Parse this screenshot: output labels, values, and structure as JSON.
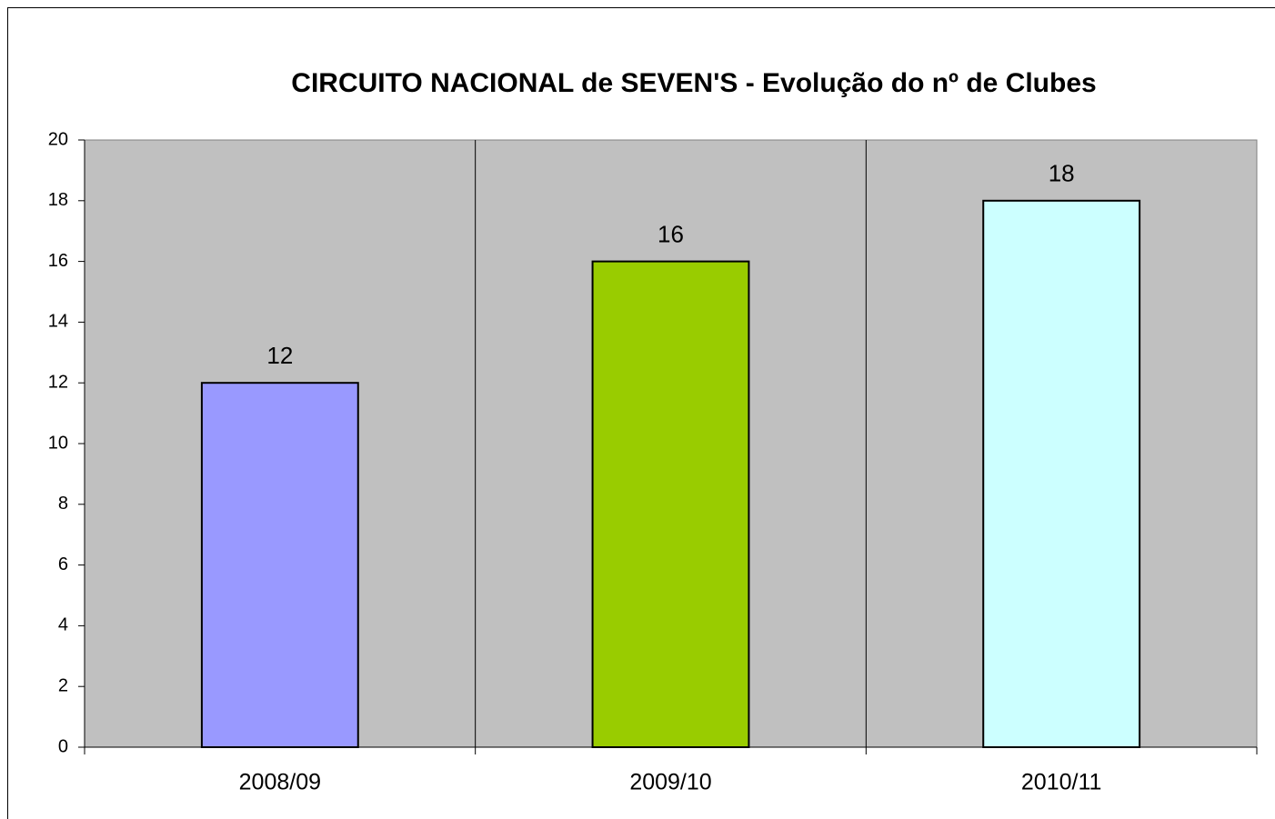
{
  "chart_data": {
    "type": "bar",
    "title": "CIRCUITO NACIONAL de SEVEN'S - Evolução do nº de Clubes",
    "categories": [
      "2008/09",
      "2009/10",
      "2010/11"
    ],
    "values": [
      12,
      16,
      18
    ],
    "colors": [
      "#9999ff",
      "#99cc00",
      "#ccffff"
    ],
    "ylim": [
      0,
      20
    ],
    "yticks": [
      0,
      2,
      4,
      6,
      8,
      10,
      12,
      14,
      16,
      18,
      20
    ],
    "grid": false
  }
}
